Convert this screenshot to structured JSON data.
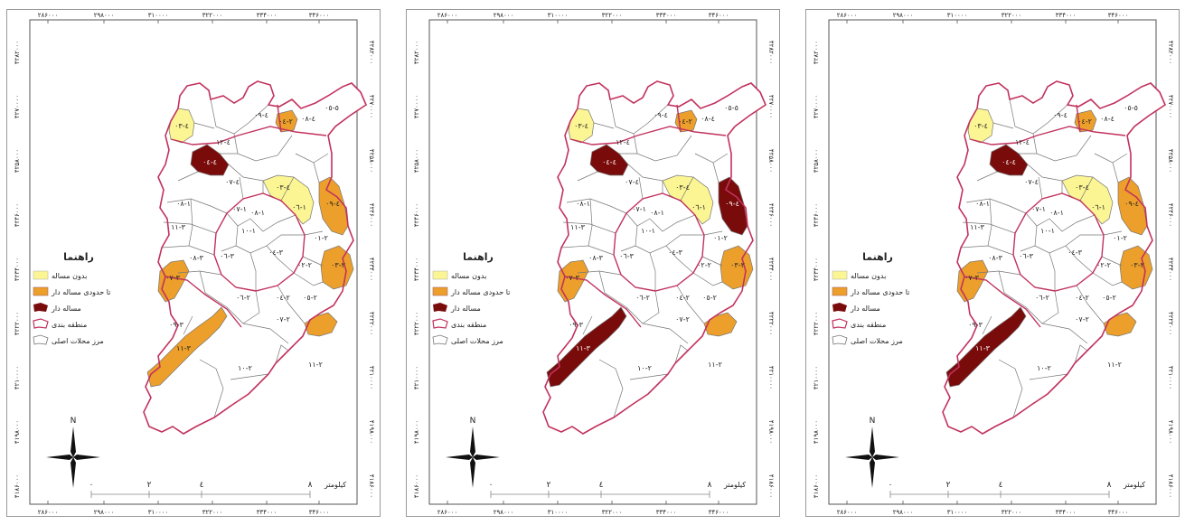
{
  "colors": {
    "no_problem": "#fbf593",
    "limited_problem": "#ec9f2a",
    "problem": "#7a0b0b",
    "zone_border": "#c2325e",
    "neighborhood_border": "#777777"
  },
  "legend": {
    "title": "راهنما",
    "items": [
      {
        "label": "بدون مساله",
        "icon": "yellow-swatch"
      },
      {
        "label": "تا حدودی مساله دار",
        "icon": "orange-swatch"
      },
      {
        "label": "مساله دار",
        "icon": "dark-red-swatch"
      },
      {
        "label": "منطقه بندی",
        "icon": "zone-outline-swatch"
      },
      {
        "label": "مرز محلات اصلی",
        "icon": "neighborhood-outline-swatch"
      }
    ]
  },
  "north_arrow": {
    "label": "N"
  },
  "scale": {
    "ticks": [
      "۰",
      "۲",
      "٤",
      "۸"
    ],
    "unit": "کیلومتر"
  },
  "grid_x": [
    "۲۸۶۰۰۰",
    "۲۹۸۰۰۰",
    "۳۱۰۰۰۰",
    "۳۲۲۰۰۰",
    "۳۳۴۰۰۰",
    "۳۴۶۰۰۰"
  ],
  "grid_y": [
    "۴۲۸۲۰۰۰",
    "۴۲۷۰۰۰۰",
    "۴۲۵۸۰۰۰",
    "۴۲۴۶۰۰۰",
    "۴۲۳۴۰۰۰",
    "۴۲۲۲۰۰۰",
    "۴۲۱۰۰۰۰",
    "۴۱۹۸۰۰۰",
    "۴۱۸۶۰۰۰"
  ],
  "labels": {
    "upper_left": "٤-٠٣",
    "north_orange": "٢-٠٤",
    "north_center": "٤-٠٩",
    "north_right": "٤-٠٨",
    "far_northeast": "٥-٠٥",
    "pocket": "٤-٠٤",
    "mid_a": "٤-١٢",
    "mid_b": "٤-٠٧",
    "yellow_east": "٤-٠٣",
    "yellow_east2": "١-٠٦",
    "east_lobe": "٤-٠٩",
    "east_small": "٢-٠١",
    "west_a": "١-٠٨",
    "west_b": "٣-١١",
    "center_a": "١-٠٧",
    "center_b": "١-٠٨",
    "center_c": "١-١٠",
    "center_d": "٣-٠٦",
    "center_e": "٣-٠٤",
    "south_west_orange": "٣-٠٧",
    "south_west_a": "٣-٠٨",
    "south_west_b": "٣-٠٩",
    "south_strip": "٣-١١",
    "south_mid": "٢-٠٦",
    "south_big": "٢-١٠",
    "south_east": "٢-١١",
    "east_orange": "٢-٠٣",
    "east_c": "٢-٠٢",
    "east_d": "٢-٠٤",
    "east_e": "٢-٠٧",
    "east_f": "٢-٠٥"
  },
  "panels": [
    {
      "name": "map-panel-1",
      "fills": {
        "upper_left": "yellow",
        "north_orange": "orange",
        "pocket": "red",
        "yellow_east": "yellow",
        "east_lobe": "orange",
        "east_orange": "orange",
        "south_west_orange": "orange",
        "south_strip": "orange",
        "south_east_small": "orange",
        "east_small": "none",
        "far_northeast": "none"
      }
    },
    {
      "name": "map-panel-2",
      "fills": {
        "upper_left": "yellow",
        "north_orange": "orange",
        "pocket": "red",
        "yellow_east": "yellow",
        "east_lobe": "red",
        "east_orange": "orange",
        "south_west_orange": "orange",
        "south_strip": "red",
        "south_east_small": "orange",
        "east_small": "none",
        "far_northeast": "none"
      }
    },
    {
      "name": "map-panel-3",
      "fills": {
        "upper_left": "yellow",
        "north_orange": "orange",
        "pocket": "red",
        "yellow_east": "yellow",
        "east_lobe": "orange",
        "east_orange": "orange",
        "south_west_orange": "orange",
        "south_strip": "red",
        "south_east_small": "orange",
        "east_small": "none",
        "far_northeast": "none"
      }
    }
  ]
}
